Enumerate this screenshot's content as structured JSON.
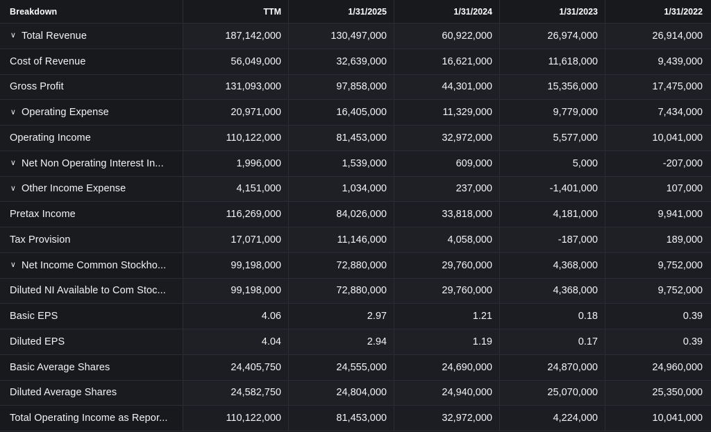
{
  "header": {
    "breakdown": "Breakdown",
    "columns": [
      "TTM",
      "1/31/2025",
      "1/31/2024",
      "1/31/2023",
      "1/31/2022"
    ]
  },
  "icons": {
    "expand": "chevron-down-icon"
  },
  "rows": [
    {
      "label": "Total Revenue",
      "expandable": true,
      "values": [
        "187,142,000",
        "130,497,000",
        "60,922,000",
        "26,974,000",
        "26,914,000"
      ]
    },
    {
      "label": "Cost of Revenue",
      "expandable": false,
      "values": [
        "56,049,000",
        "32,639,000",
        "16,621,000",
        "11,618,000",
        "9,439,000"
      ]
    },
    {
      "label": "Gross Profit",
      "expandable": false,
      "values": [
        "131,093,000",
        "97,858,000",
        "44,301,000",
        "15,356,000",
        "17,475,000"
      ]
    },
    {
      "label": "Operating Expense",
      "expandable": true,
      "values": [
        "20,971,000",
        "16,405,000",
        "11,329,000",
        "9,779,000",
        "7,434,000"
      ]
    },
    {
      "label": "Operating Income",
      "expandable": false,
      "values": [
        "110,122,000",
        "81,453,000",
        "32,972,000",
        "5,577,000",
        "10,041,000"
      ]
    },
    {
      "label": "Net Non Operating Interest In...",
      "expandable": true,
      "values": [
        "1,996,000",
        "1,539,000",
        "609,000",
        "5,000",
        "-207,000"
      ]
    },
    {
      "label": "Other Income Expense",
      "expandable": true,
      "values": [
        "4,151,000",
        "1,034,000",
        "237,000",
        "-1,401,000",
        "107,000"
      ]
    },
    {
      "label": "Pretax Income",
      "expandable": false,
      "values": [
        "116,269,000",
        "84,026,000",
        "33,818,000",
        "4,181,000",
        "9,941,000"
      ]
    },
    {
      "label": "Tax Provision",
      "expandable": false,
      "values": [
        "17,071,000",
        "11,146,000",
        "4,058,000",
        "-187,000",
        "189,000"
      ]
    },
    {
      "label": "Net Income Common Stockho...",
      "expandable": true,
      "values": [
        "99,198,000",
        "72,880,000",
        "29,760,000",
        "4,368,000",
        "9,752,000"
      ]
    },
    {
      "label": "Diluted NI Available to Com Stoc...",
      "expandable": false,
      "values": [
        "99,198,000",
        "72,880,000",
        "29,760,000",
        "4,368,000",
        "9,752,000"
      ]
    },
    {
      "label": "Basic EPS",
      "expandable": false,
      "values": [
        "4.06",
        "2.97",
        "1.21",
        "0.18",
        "0.39"
      ]
    },
    {
      "label": "Diluted EPS",
      "expandable": false,
      "values": [
        "4.04",
        "2.94",
        "1.19",
        "0.17",
        "0.39"
      ]
    },
    {
      "label": "Basic Average Shares",
      "expandable": false,
      "values": [
        "24,405,750",
        "24,555,000",
        "24,690,000",
        "24,870,000",
        "24,960,000"
      ]
    },
    {
      "label": "Diluted Average Shares",
      "expandable": false,
      "values": [
        "24,582,750",
        "24,804,000",
        "24,940,000",
        "25,070,000",
        "25,350,000"
      ]
    },
    {
      "label": "Total Operating Income as Repor...",
      "expandable": false,
      "values": [
        "110,122,000",
        "81,453,000",
        "32,972,000",
        "4,224,000",
        "10,041,000"
      ]
    }
  ]
}
